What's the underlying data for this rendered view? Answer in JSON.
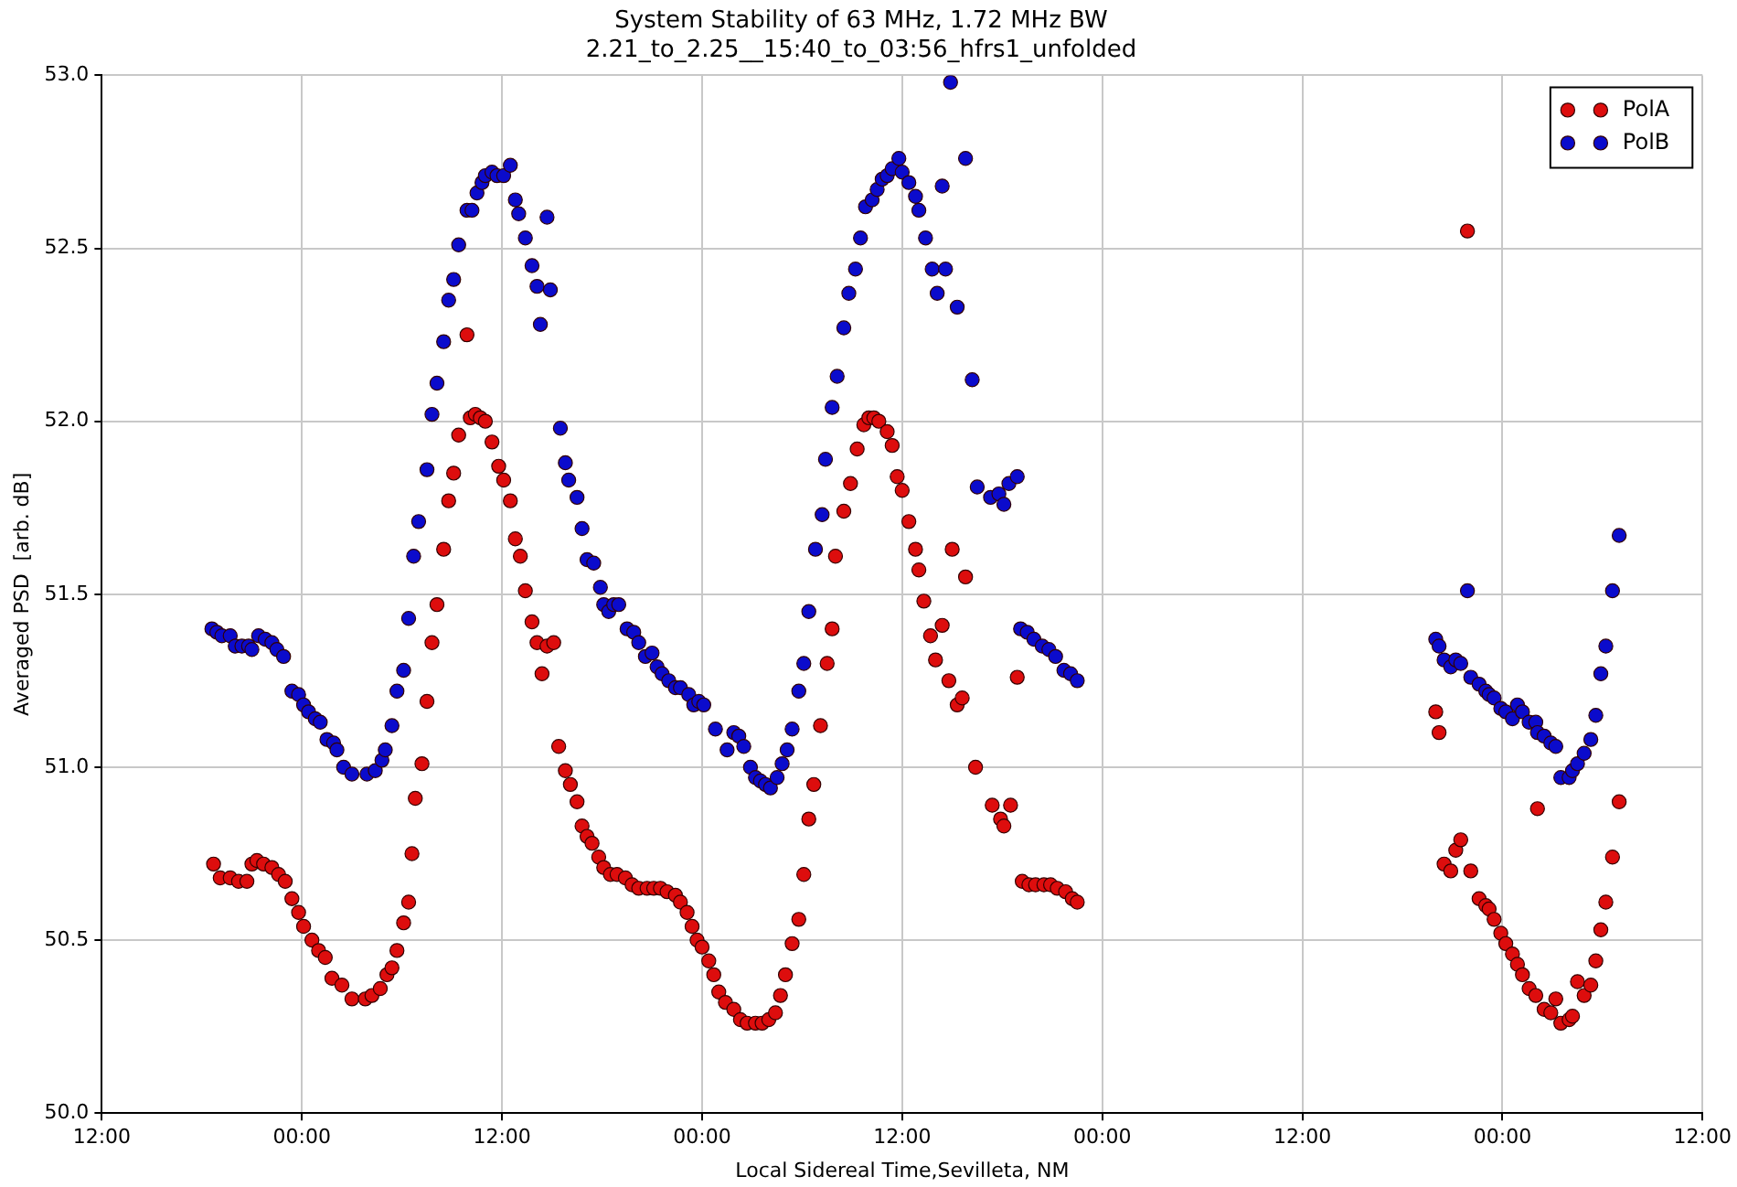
{
  "chart_data": {
    "type": "scatter",
    "title": "System Stability of 63 MHz, 1.72 MHz BW",
    "subtitle": "2.21_to_2.25__15:40_to_03:56_hfrs1_unfolded",
    "xlabel": "Local Sidereal Time,Sevilleta, NM",
    "ylabel": "Averaged PSD  [arb. dB]",
    "xlim": [
      "--02-21T12:00",
      "--02-25T12:00"
    ],
    "xticks": [
      {
        "value": "--02-21T12:00",
        "label": "12:00"
      },
      {
        "value": "--02-22T00:00",
        "label": "00:00"
      },
      {
        "value": "--02-22T12:00",
        "label": "12:00"
      },
      {
        "value": "--02-23T00:00",
        "label": "00:00"
      },
      {
        "value": "--02-23T12:00",
        "label": "12:00"
      },
      {
        "value": "--02-24T00:00",
        "label": "00:00"
      },
      {
        "value": "--02-24T12:00",
        "label": "12:00"
      },
      {
        "value": "--02-25T00:00",
        "label": "00:00"
      },
      {
        "value": "--02-25T12:00",
        "label": "12:00"
      }
    ],
    "ylim": [
      50,
      53
    ],
    "yticks": [
      {
        "value": 50,
        "label": "50.0"
      },
      50.5,
      {
        "value": 51,
        "label": "51.0"
      },
      51.5,
      {
        "value": 52,
        "label": "52.0"
      },
      52.5,
      {
        "value": 53,
        "label": "53.0"
      }
    ],
    "grid": true,
    "legend": "top right",
    "marker": "circle",
    "series": [
      {
        "name": "PolA",
        "color": "#dd0d0d",
        "x": [
          "--02-21T18:42",
          "--02-21T19:06",
          "--02-21T19:42",
          "--02-21T20:12",
          "--02-21T20:42",
          "--02-21T21:00",
          "--02-21T21:18",
          "--02-21T21:42",
          "--02-21T22:12",
          "--02-21T22:36",
          "--02-21T23:00",
          "--02-21T23:24",
          "--02-21T23:48",
          "--02-22T00:06",
          "--02-22T00:36",
          "--02-22T01:00",
          "--02-22T01:24",
          "--02-22T01:48",
          "--02-22T02:24",
          "--02-22T03:00",
          "--02-22T03:48",
          "--02-22T04:12",
          "--02-22T04:42",
          "--02-22T05:06",
          "--02-22T05:24",
          "--02-22T05:42",
          "--02-22T06:06",
          "--02-22T06:24",
          "--02-22T06:36",
          "--02-22T06:48",
          "--02-22T07:12",
          "--02-22T07:30",
          "--02-22T07:48",
          "--02-22T08:06",
          "--02-22T08:30",
          "--02-22T08:48",
          "--02-22T09:06",
          "--02-22T09:24",
          "--02-22T09:54",
          "--02-22T10:06",
          "--02-22T10:24",
          "--02-22T10:42",
          "--02-22T11:00",
          "--02-22T11:24",
          "--02-22T11:48",
          "--02-22T12:06",
          "--02-22T12:30",
          "--02-22T12:48",
          "--02-22T13:06",
          "--02-22T13:24",
          "--02-22T13:48",
          "--02-22T14:06",
          "--02-22T14:24",
          "--02-22T14:42",
          "--02-22T15:06",
          "--02-22T15:24",
          "--02-22T15:48",
          "--02-22T16:06",
          "--02-22T16:30",
          "--02-22T16:48",
          "--02-22T17:06",
          "--02-22T17:24",
          "--02-22T17:48",
          "--02-22T18:06",
          "--02-22T18:30",
          "--02-22T18:54",
          "--02-22T19:24",
          "--02-22T19:48",
          "--02-22T20:12",
          "--02-22T20:42",
          "--02-22T21:06",
          "--02-22T21:30",
          "--02-22T21:54",
          "--02-22T22:24",
          "--02-22T22:42",
          "--02-22T23:06",
          "--02-22T23:24",
          "--02-22T23:42",
          "--02-23T00:00",
          "--02-23T00:24",
          "--02-23T00:42",
          "--02-23T01:00",
          "--02-23T01:24",
          "--02-23T01:54",
          "--02-23T02:18",
          "--02-23T02:42",
          "--02-23T03:12",
          "--02-23T03:36",
          "--02-23T04:00",
          "--02-23T04:24",
          "--02-23T04:42",
          "--02-23T05:00",
          "--02-23T05:24",
          "--02-23T05:48",
          "--02-23T06:06",
          "--02-23T06:24",
          "--02-23T06:42",
          "--02-23T07:06",
          "--02-23T07:30",
          "--02-23T07:48",
          "--02-23T08:00",
          "--02-23T08:30",
          "--02-23T08:54",
          "--02-23T09:18",
          "--02-23T09:42",
          "--02-23T10:00",
          "--02-23T10:18",
          "--02-23T10:36",
          "--02-23T11:06",
          "--02-23T11:24",
          "--02-23T11:42",
          "--02-23T12:00",
          "--02-23T12:24",
          "--02-23T12:48",
          "--02-23T13:00",
          "--02-23T13:18",
          "--02-23T13:42",
          "--02-23T14:00",
          "--02-23T14:24",
          "--02-23T14:48",
          "--02-23T15:00",
          "--02-23T15:18",
          "--02-23T15:36",
          "--02-23T15:48",
          "--02-23T16:24",
          "--02-23T17:24",
          "--02-23T17:54",
          "--02-23T18:06",
          "--02-23T18:30",
          "--02-23T18:54",
          "--02-23T19:12",
          "--02-23T19:36",
          "--02-23T20:00",
          "--02-23T20:30",
          "--02-23T20:54",
          "--02-23T21:18",
          "--02-23T21:48",
          "--02-23T22:12",
          "--02-23T22:30",
          "--02-24T20:00",
          "--02-24T20:12",
          "--02-24T20:30",
          "--02-24T20:54",
          "--02-24T21:12",
          "--02-24T21:30",
          "--02-24T21:54",
          "--02-24T22:06",
          "--02-24T22:36",
          "--02-24T23:00",
          "--02-24T23:12",
          "--02-24T23:30",
          "--02-24T23:54",
          "--02-25T00:12",
          "--02-25T00:36",
          "--02-25T00:54",
          "--02-25T01:12",
          "--02-25T01:36",
          "--02-25T02:00",
          "--02-25T02:06",
          "--02-25T02:30",
          "--02-25T02:54",
          "--02-25T03:12",
          "--02-25T03:30",
          "--02-25T04:00",
          "--02-25T04:12",
          "--02-25T04:30",
          "--02-25T04:54",
          "--02-25T05:18",
          "--02-25T05:36",
          "--02-25T05:54",
          "--02-25T06:12",
          "--02-25T06:36",
          "--02-25T07:00"
        ],
        "values": [
          50.72,
          50.68,
          50.68,
          50.67,
          50.67,
          50.72,
          50.73,
          50.72,
          50.71,
          50.69,
          50.67,
          50.62,
          50.58,
          50.54,
          50.5,
          50.47,
          50.45,
          50.39,
          50.37,
          50.33,
          50.33,
          50.34,
          50.36,
          50.4,
          50.42,
          50.47,
          50.55,
          50.61,
          50.75,
          50.91,
          51.01,
          51.19,
          51.36,
          51.47,
          51.63,
          51.77,
          51.85,
          51.96,
          52.25,
          52.01,
          52.02,
          52.01,
          52.0,
          51.94,
          51.87,
          51.83,
          51.77,
          51.66,
          51.61,
          51.51,
          51.42,
          51.36,
          51.27,
          51.35,
          51.36,
          51.06,
          50.99,
          50.95,
          50.9,
          50.83,
          50.8,
          50.78,
          50.74,
          50.71,
          50.69,
          50.69,
          50.68,
          50.66,
          50.65,
          50.65,
          50.65,
          50.65,
          50.64,
          50.63,
          50.61,
          50.58,
          50.54,
          50.5,
          50.48,
          50.44,
          50.4,
          50.35,
          50.32,
          50.3,
          50.27,
          50.26,
          50.26,
          50.26,
          50.27,
          50.29,
          50.34,
          50.4,
          50.49,
          50.56,
          50.69,
          50.85,
          50.95,
          51.12,
          51.3,
          51.4,
          51.61,
          51.74,
          51.82,
          51.92,
          51.99,
          52.01,
          52.01,
          52.0,
          51.97,
          51.93,
          51.84,
          51.8,
          51.71,
          51.63,
          51.57,
          51.48,
          51.38,
          51.31,
          51.41,
          51.25,
          51.63,
          51.18,
          51.2,
          51.55,
          51.0,
          50.89,
          50.85,
          50.83,
          50.89,
          51.26,
          50.67,
          50.66,
          50.66,
          50.66,
          50.66,
          50.65,
          50.64,
          50.62,
          50.61,
          51.16,
          51.1,
          50.72,
          50.7,
          50.76,
          50.79,
          52.55,
          50.7,
          50.62,
          50.6,
          50.59,
          50.56,
          50.52,
          50.49,
          50.46,
          50.43,
          50.4,
          50.36,
          50.34,
          50.88,
          50.3,
          50.29,
          50.33,
          50.26,
          50.27,
          50.28,
          50.38,
          50.34,
          50.37,
          50.44,
          50.53,
          50.61,
          50.74,
          50.9
        ]
      },
      {
        "name": "PolB",
        "color": "#0b0bcc",
        "x": [
          "--02-21T18:36",
          "--02-21T18:54",
          "--02-21T19:12",
          "--02-21T19:42",
          "--02-21T20:00",
          "--02-21T20:24",
          "--02-21T20:48",
          "--02-21T21:00",
          "--02-21T21:24",
          "--02-21T21:48",
          "--02-21T22:12",
          "--02-21T22:30",
          "--02-21T22:54",
          "--02-21T23:24",
          "--02-21T23:48",
          "--02-22T00:06",
          "--02-22T00:24",
          "--02-22T00:48",
          "--02-22T01:06",
          "--02-22T01:30",
          "--02-22T01:54",
          "--02-22T02:06",
          "--02-22T02:30",
          "--02-22T03:00",
          "--02-22T03:54",
          "--02-22T04:24",
          "--02-22T04:48",
          "--02-22T05:00",
          "--02-22T05:24",
          "--02-22T05:42",
          "--02-22T06:06",
          "--02-22T06:24",
          "--02-22T06:42",
          "--02-22T07:00",
          "--02-22T07:30",
          "--02-22T07:48",
          "--02-22T08:06",
          "--02-22T08:30",
          "--02-22T08:48",
          "--02-22T09:06",
          "--02-22T09:24",
          "--02-22T09:54",
          "--02-22T10:12",
          "--02-22T10:30",
          "--02-22T10:48",
          "--02-22T11:00",
          "--02-22T11:24",
          "--02-22T11:42",
          "--02-22T12:06",
          "--02-22T12:30",
          "--02-22T12:48",
          "--02-22T13:00",
          "--02-22T13:24",
          "--02-22T13:48",
          "--02-22T14:06",
          "--02-22T14:18",
          "--02-22T14:42",
          "--02-22T14:54",
          "--02-22T15:30",
          "--02-22T15:48",
          "--02-22T16:00",
          "--02-22T16:30",
          "--02-22T16:48",
          "--02-22T17:06",
          "--02-22T17:30",
          "--02-22T17:54",
          "--02-22T18:06",
          "--02-22T18:24",
          "--02-22T18:42",
          "--02-22T19:00",
          "--02-22T19:30",
          "--02-22T19:54",
          "--02-22T20:12",
          "--02-22T20:36",
          "--02-22T21:00",
          "--02-22T21:18",
          "--02-22T21:36",
          "--02-22T22:00",
          "--02-22T22:24",
          "--02-22T22:42",
          "--02-22T23:12",
          "--02-22T23:30",
          "--02-22T23:48",
          "--02-23T00:06",
          "--02-23T00:48",
          "--02-23T01:30",
          "--02-23T01:54",
          "--02-23T02:12",
          "--02-23T02:30",
          "--02-23T02:54",
          "--02-23T03:12",
          "--02-23T03:30",
          "--02-23T03:48",
          "--02-23T04:06",
          "--02-23T04:30",
          "--02-23T04:48",
          "--02-23T05:06",
          "--02-23T05:24",
          "--02-23T05:48",
          "--02-23T06:06",
          "--02-23T06:24",
          "--02-23T06:48",
          "--02-23T07:12",
          "--02-23T07:24",
          "--02-23T07:48",
          "--02-23T08:06",
          "--02-23T08:30",
          "--02-23T08:48",
          "--02-23T09:12",
          "--02-23T09:30",
          "--02-23T09:48",
          "--02-23T10:12",
          "--02-23T10:30",
          "--02-23T10:48",
          "--02-23T11:06",
          "--02-23T11:24",
          "--02-23T11:48",
          "--02-23T12:00",
          "--02-23T12:24",
          "--02-23T12:48",
          "--02-23T13:00",
          "--02-23T13:24",
          "--02-23T13:48",
          "--02-23T14:06",
          "--02-23T14:24",
          "--02-23T14:36",
          "--02-23T14:54",
          "--02-23T15:18",
          "--02-23T15:48",
          "--02-23T16:12",
          "--02-23T16:30",
          "--02-23T17:18",
          "--02-23T17:48",
          "--02-23T18:06",
          "--02-23T18:24",
          "--02-23T18:54",
          "--02-23T19:06",
          "--02-23T19:30",
          "--02-23T19:54",
          "--02-23T20:24",
          "--02-23T20:48",
          "--02-23T21:12",
          "--02-23T21:42",
          "--02-23T22:06",
          "--02-23T22:30",
          "--02-24T20:00",
          "--02-24T20:12",
          "--02-24T20:30",
          "--02-24T20:54",
          "--02-24T21:12",
          "--02-24T21:30",
          "--02-24T21:54",
          "--02-24T22:06",
          "--02-24T22:36",
          "--02-24T23:00",
          "--02-24T23:12",
          "--02-24T23:30",
          "--02-24T23:54",
          "--02-25T00:12",
          "--02-25T00:36",
          "--02-25T00:54",
          "--02-25T01:12",
          "--02-25T01:36",
          "--02-25T02:00",
          "--02-25T02:06",
          "--02-25T02:30",
          "--02-25T02:54",
          "--02-25T03:12",
          "--02-25T03:30",
          "--02-25T04:00",
          "--02-25T04:12",
          "--02-25T04:30",
          "--02-25T04:54",
          "--02-25T05:18",
          "--02-25T05:36",
          "--02-25T05:54",
          "--02-25T06:12",
          "--02-25T06:36",
          "--02-25T07:00"
        ],
        "values": [
          51.4,
          51.39,
          51.38,
          51.38,
          51.35,
          51.35,
          51.35,
          51.34,
          51.38,
          51.37,
          51.36,
          51.34,
          51.32,
          51.22,
          51.21,
          51.18,
          51.16,
          51.14,
          51.13,
          51.08,
          51.07,
          51.05,
          51.0,
          50.98,
          50.98,
          50.99,
          51.02,
          51.05,
          51.12,
          51.22,
          51.28,
          51.43,
          51.61,
          51.71,
          51.86,
          52.02,
          52.11,
          52.23,
          52.35,
          52.41,
          52.51,
          52.61,
          52.61,
          52.66,
          52.69,
          52.71,
          52.72,
          52.71,
          52.71,
          52.74,
          52.64,
          52.6,
          52.53,
          52.45,
          52.39,
          52.28,
          52.59,
          52.38,
          51.98,
          51.88,
          51.83,
          51.78,
          51.69,
          51.6,
          51.59,
          51.52,
          51.47,
          51.45,
          51.47,
          51.47,
          51.4,
          51.39,
          51.36,
          51.32,
          51.33,
          51.29,
          51.27,
          51.25,
          51.23,
          51.23,
          51.21,
          51.18,
          51.19,
          51.18,
          51.11,
          51.05,
          51.1,
          51.09,
          51.06,
          51.0,
          50.97,
          50.96,
          50.95,
          50.94,
          50.97,
          51.01,
          51.05,
          51.11,
          51.22,
          51.3,
          51.45,
          51.63,
          51.73,
          51.89,
          52.04,
          52.13,
          52.27,
          52.37,
          52.44,
          52.53,
          52.62,
          52.64,
          52.67,
          52.7,
          52.71,
          52.73,
          52.76,
          52.72,
          52.69,
          52.65,
          52.61,
          52.53,
          52.44,
          52.37,
          52.68,
          52.44,
          52.98,
          52.33,
          52.76,
          52.12,
          51.81,
          51.78,
          51.79,
          51.76,
          51.82,
          51.84,
          51.4,
          51.39,
          51.37,
          51.35,
          51.34,
          51.32,
          51.28,
          51.27,
          51.25,
          51.37,
          51.35,
          51.31,
          51.29,
          51.31,
          51.3,
          51.51,
          51.26,
          51.24,
          51.22,
          51.21,
          51.2,
          51.17,
          51.16,
          51.14,
          51.18,
          51.16,
          51.13,
          51.13,
          51.1,
          51.09,
          51.07,
          51.06,
          50.97,
          50.97,
          50.99,
          51.01,
          51.04,
          51.08,
          51.15,
          51.27,
          51.35,
          51.51,
          51.67
        ]
      }
    ]
  }
}
